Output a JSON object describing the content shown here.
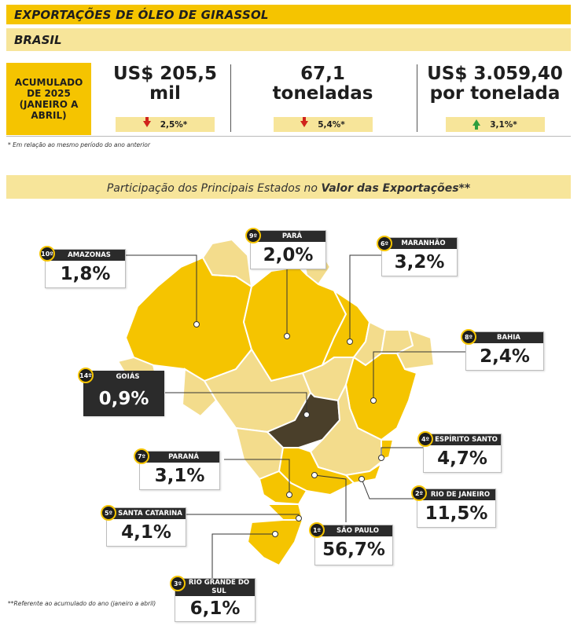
{
  "header": {
    "title": "EXPORTAÇÕES DE ÓLEO DE GIRASSOL",
    "subtitle": "BRASIL"
  },
  "kpis": {
    "label": "ACUMULADO DE 2025 (JANEIRO A ABRIL)",
    "items": [
      {
        "value": "US$ 205,5 mil",
        "change": "2,5%*",
        "direction": "down"
      },
      {
        "value": "67,1 toneladas",
        "change": "5,4%*",
        "direction": "down"
      },
      {
        "value": "US$ 3.059,40 por tonelada",
        "change": "3,1%*",
        "direction": "up"
      }
    ],
    "footnote": "* Em relação ao mesmo período do ano anterior"
  },
  "section": {
    "title_prefix": "Participação dos Principais Estados no ",
    "title_emphasis": "Valor das Exportações**"
  },
  "states": [
    {
      "rank": "10º",
      "name": "AMAZONAS",
      "share": "1,8%"
    },
    {
      "rank": "9º",
      "name": "PARÁ",
      "share": "2,0%"
    },
    {
      "rank": "6º",
      "name": "MARANHÃO",
      "share": "3,2%"
    },
    {
      "rank": "8º",
      "name": "BAHIA",
      "share": "2,4%"
    },
    {
      "rank": "14º",
      "name": "GOIÁS",
      "share": "0,9%"
    },
    {
      "rank": "4º",
      "name": "ESPÍRITO SANTO",
      "share": "4,7%"
    },
    {
      "rank": "7º",
      "name": "PARANÁ",
      "share": "3,1%"
    },
    {
      "rank": "2º",
      "name": "RIO DE JANEIRO",
      "share": "11,5%"
    },
    {
      "rank": "5º",
      "name": "SANTA CATARINA",
      "share": "4,1%"
    },
    {
      "rank": "1º",
      "name": "SÃO PAULO",
      "share": "56,7%"
    },
    {
      "rank": "3º",
      "name": "RIO GRANDE DO SUL",
      "share": "6,1%"
    }
  ],
  "colors": {
    "yellow": "#f5c400",
    "light_yellow": "#f7e59a",
    "map_pale": "#f3dc8c",
    "highlight": "#4a3f2a",
    "dark": "#2b2b2b",
    "down": "#d0231c",
    "up": "#2e9e3e"
  },
  "footnote": "**Referente ao acumulado do ano (janeiro a abril)"
}
